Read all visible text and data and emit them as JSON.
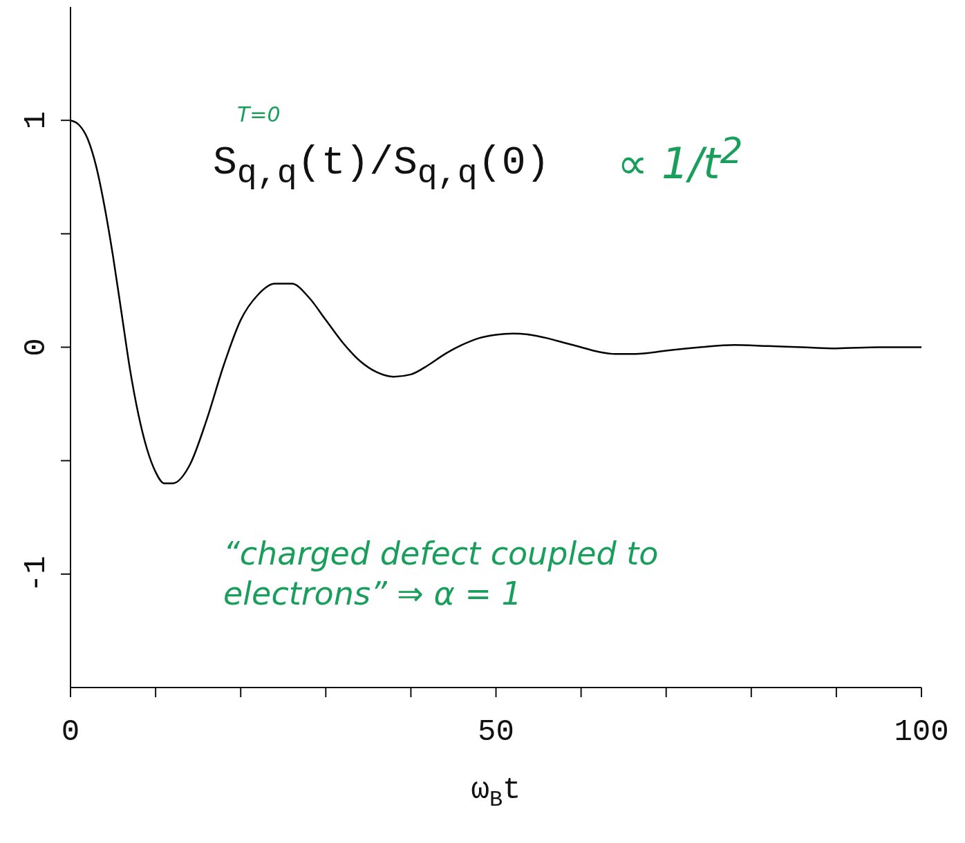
{
  "chart_data": {
    "type": "line",
    "xlabel": "ω$_{B}$t",
    "annotations": [
      "T=0",
      "S$_{q,q}$(t)/S$_{q,q}$(0)",
      "∝ 1/t$^{2}$",
      "“charged defect coupled to electrons” ⇒ α = 1"
    ],
    "x": [
      0,
      1,
      2,
      3,
      4,
      5,
      6,
      7,
      8,
      9,
      10,
      11,
      12,
      14,
      16,
      18,
      20,
      22,
      24,
      26,
      28,
      30,
      32,
      34,
      36,
      38,
      40,
      42,
      44,
      46,
      48,
      50,
      52,
      54,
      56,
      58,
      60,
      62,
      64,
      66,
      68,
      70,
      74,
      78,
      82,
      86,
      90,
      95,
      100
    ],
    "series": [
      {
        "color": "#000000",
        "values": [
          1,
          0.98,
          0.92,
          0.8,
          0.62,
          0.4,
          0.15,
          -0.1,
          -0.3,
          -0.45,
          -0.55,
          -0.6,
          -0.6,
          -0.52,
          -0.32,
          -0.08,
          0.12,
          0.23,
          0.28,
          0.28,
          0.22,
          0.12,
          0.02,
          -0.06,
          -0.11,
          -0.13,
          -0.12,
          -0.08,
          -0.03,
          0.01,
          0.04,
          0.055,
          0.06,
          0.055,
          0.04,
          0.02,
          0,
          -0.02,
          -0.03,
          -0.03,
          -0.025,
          -0.015,
          0,
          0.01,
          0.005,
          0,
          -0.005,
          0,
          0
        ]
      }
    ],
    "xlim": [
      0,
      100
    ],
    "xticks": [
      0,
      {
        "value": 10,
        "label": null
      },
      {
        "value": 20,
        "label": null
      },
      {
        "value": 30,
        "label": null
      },
      {
        "value": 40,
        "label": null
      },
      50,
      {
        "value": 60,
        "label": null
      },
      {
        "value": 70,
        "label": null
      },
      {
        "value": 80,
        "label": null
      },
      {
        "value": 90,
        "label": null
      },
      100
    ],
    "ylim": [
      -1.5,
      1.5
    ],
    "yticks": [
      -1,
      {
        "value": -0.5,
        "label": null
      },
      0,
      {
        "value": 0.5,
        "label": null
      },
      1
    ],
    "grid": false,
    "legend": false,
    "marker": "none",
    "line_style": "solid"
  }
}
